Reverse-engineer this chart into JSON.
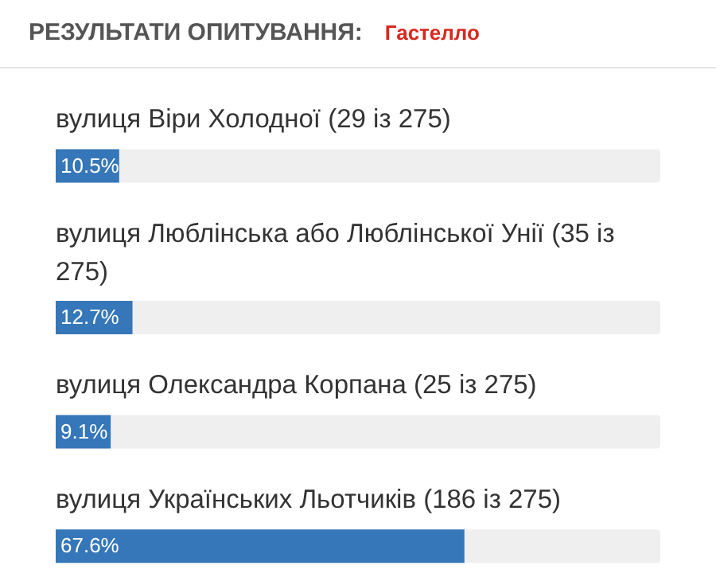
{
  "chart_data": {
    "type": "bar",
    "orientation": "horizontal",
    "title": "РЕЗУЛЬТАТИ ОПИТУВАННЯ:",
    "subtitle": "Гастелло",
    "categories": [
      "вулиця Віри Холодної (29 із 275)",
      "вулиця Люблінська або Люблінської Унії (35 із 275)",
      "вулиця Олександра Корпана (25 із 275)",
      "вулиця Українських Льотчиків (186 із 275)"
    ],
    "values": [
      10.5,
      12.7,
      9.1,
      67.6
    ],
    "value_labels": [
      "10.5%",
      "12.7%",
      "9.1%",
      "67.6%"
    ],
    "color": "#3577b8",
    "xlim": [
      0,
      100
    ]
  }
}
